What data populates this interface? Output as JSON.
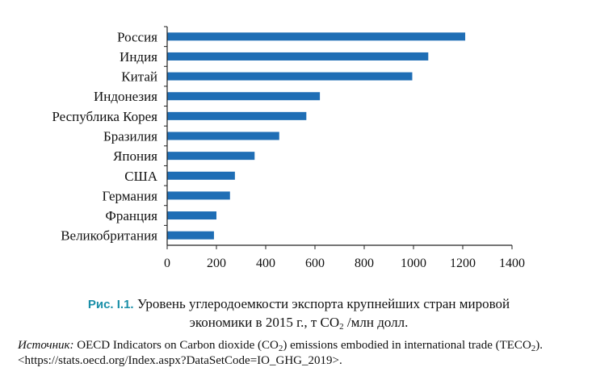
{
  "chart_data": {
    "type": "bar",
    "orientation": "horizontal",
    "categories": [
      "Россия",
      "Индия",
      "Китай",
      "Индонезия",
      "Республика Корея",
      "Бразилия",
      "Япония",
      "США",
      "Германия",
      "Франция",
      "Великобритания"
    ],
    "values": [
      1210,
      1060,
      995,
      620,
      565,
      455,
      355,
      275,
      255,
      200,
      190
    ],
    "xlim": [
      0,
      1400
    ],
    "xticks": [
      "0",
      "200",
      "400",
      "600",
      "800",
      "1000",
      "1200",
      "1400"
    ],
    "bar_color": "#1f6eb5",
    "grid": false
  },
  "caption": {
    "fig_label": "Рис. I.1.",
    "line1": " Уровень углеродоемкости экспорта крупнейших стран мировой",
    "line2_pre": "экономики в 2015 г., т СО",
    "line2_sub": "2",
    "line2_post": " /млн долл."
  },
  "source": {
    "label": "Источник:",
    "part1": " OECD Indicators on Carbon dioxide (CO",
    "sub1": "2",
    "part2": ") emissions embodied in international trade (TECO",
    "sub2": "2",
    "part3": "). <https://stats.oecd.org/Index.aspx?DataSetCode=IO_GHG_2019>."
  }
}
